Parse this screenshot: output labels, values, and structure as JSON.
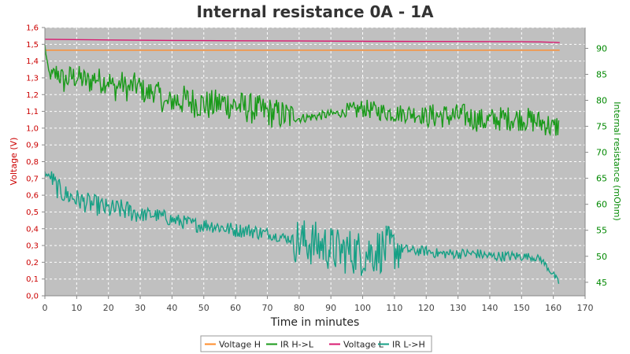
{
  "chart_data": {
    "type": "line",
    "title": "Internal resistance  0A - 1A",
    "xlabel": "Time in minutes",
    "ylabel_left": "Voltage (V)",
    "ylabel_right": "Internal resistance (mOhm)",
    "xlim": [
      0,
      170
    ],
    "ylim_left": [
      0,
      1.6
    ],
    "ylim_right": [
      42.4,
      94.0
    ],
    "x_ticks": [
      "0",
      "10",
      "20",
      "30",
      "40",
      "50",
      "60",
      "70",
      "80",
      "90",
      "100",
      "110",
      "120",
      "130",
      "140",
      "150",
      "160",
      "170"
    ],
    "y_left_ticks": [
      "0,0",
      "0,1",
      "0,2",
      "0,3",
      "0,4",
      "0,5",
      "0,6",
      "0,7",
      "0,8",
      "0,9",
      "1,0",
      "1,1",
      "1,2",
      "1,3",
      "1,4",
      "1,5",
      "1,6"
    ],
    "y_right_ticks": [
      "45",
      "50",
      "55",
      "60",
      "65",
      "70",
      "75",
      "80",
      "85",
      "90"
    ],
    "grid": true,
    "legend_position": "bottom",
    "series": [
      {
        "name": "Voltage H",
        "axis": "left",
        "color": "#ff8c2a",
        "x": [
          0,
          40,
          80,
          120,
          160,
          162
        ],
        "y": [
          1.465,
          1.465,
          1.465,
          1.465,
          1.465,
          1.465
        ]
      },
      {
        "name": "IR H->L",
        "axis": "right",
        "color": "#1a9a1a",
        "x": [
          0,
          1,
          2,
          4,
          6,
          8,
          10,
          12,
          14,
          16,
          18,
          20,
          22,
          24,
          26,
          28,
          30,
          32,
          34,
          36,
          38,
          40,
          44,
          48,
          52,
          56,
          60,
          64,
          68,
          72,
          76,
          80,
          86,
          92,
          98,
          100,
          104,
          110,
          116,
          120,
          126,
          132,
          138,
          144,
          150,
          154,
          158,
          160,
          162
        ],
        "y": [
          90.5,
          86,
          84,
          85.5,
          83.5,
          84.5,
          84.5,
          84,
          83.5,
          84.5,
          83.5,
          84,
          82,
          83.5,
          82,
          83,
          82.5,
          81,
          82,
          81,
          79,
          80,
          80,
          79.5,
          79,
          79.5,
          79,
          78.5,
          78,
          77.5,
          77,
          76.5,
          77,
          77.5,
          78,
          78.5,
          78,
          77.5,
          77.5,
          77,
          77,
          77,
          76,
          76.5,
          76.5,
          76,
          75.5,
          74.5,
          75.5
        ]
      },
      {
        "name": "Voltage L",
        "axis": "left",
        "color": "#d81b70",
        "x": [
          0,
          20,
          40,
          60,
          80,
          100,
          120,
          140,
          150,
          156,
          160,
          162
        ],
        "y": [
          1.53,
          1.526,
          1.523,
          1.521,
          1.52,
          1.518,
          1.517,
          1.516,
          1.515,
          1.514,
          1.512,
          1.51
        ]
      },
      {
        "name": "IR L->H",
        "axis": "right",
        "color": "#16a085",
        "x": [
          0,
          2,
          4,
          6,
          8,
          10,
          12,
          15,
          18,
          20,
          24,
          28,
          30,
          34,
          38,
          40,
          44,
          48,
          52,
          56,
          60,
          64,
          68,
          72,
          76,
          80,
          84,
          88,
          92,
          96,
          100,
          104,
          108,
          112,
          116,
          120,
          124,
          128,
          132,
          136,
          140,
          144,
          148,
          152,
          156,
          158,
          160,
          162
        ],
        "y": [
          66,
          65,
          63,
          62,
          61.5,
          61,
          60.5,
          60,
          59.5,
          59,
          59,
          58.5,
          58,
          58,
          57.5,
          57,
          56.5,
          56,
          56,
          55.5,
          55,
          55,
          54.5,
          54,
          53.5,
          53,
          52.5,
          52,
          51,
          51,
          50.5,
          51,
          51.5,
          51.5,
          51,
          51,
          50.5,
          50.5,
          50.5,
          50.5,
          50,
          50,
          50,
          50,
          49.5,
          48,
          46.5,
          44.5
        ]
      }
    ]
  }
}
